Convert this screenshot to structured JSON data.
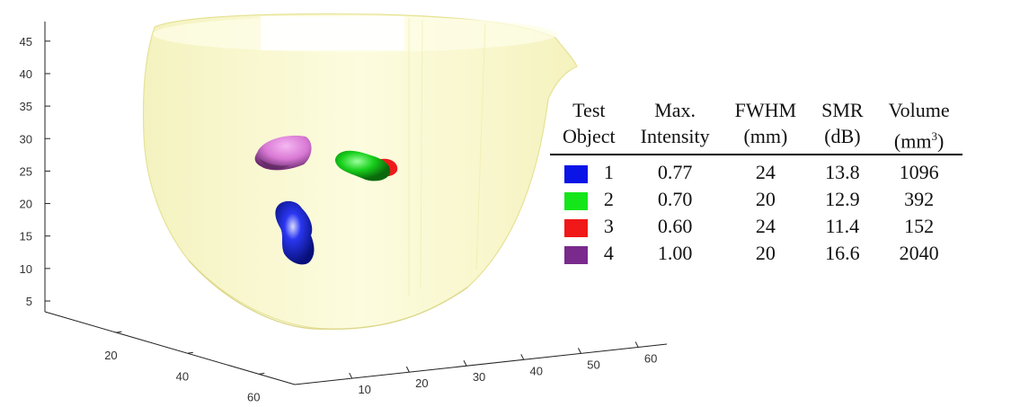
{
  "chart_data": {
    "type": "table",
    "plot_3d": {
      "z_ticks": [
        "5",
        "10",
        "15",
        "20",
        "25",
        "30",
        "35",
        "40",
        "45"
      ],
      "x_ticks": [
        "10",
        "20",
        "30",
        "40",
        "50",
        "60"
      ],
      "y_ticks": [
        "20",
        "40",
        "60"
      ],
      "grid": false
    },
    "table": {
      "header": [
        [
          "Test",
          "Max.",
          "FWHM",
          "SMR",
          "Volume"
        ],
        [
          "Object",
          "Intensity",
          "(mm)",
          "(dB)",
          "(mm"
        ]
      ],
      "volume_unit_power": "3",
      "volume_unit_close": ")",
      "rows": [
        {
          "object": "1",
          "color": "#0a14e6",
          "max_intensity": "0.77",
          "fwhm": "24",
          "smr": "13.8",
          "volume": "1096"
        },
        {
          "object": "2",
          "color": "#14e61a",
          "max_intensity": "0.70",
          "fwhm": "20",
          "smr": "12.9",
          "volume": "392"
        },
        {
          "object": "3",
          "color": "#f01818",
          "max_intensity": "0.60",
          "fwhm": "24",
          "smr": "11.4",
          "volume": "152"
        },
        {
          "object": "4",
          "color": "#7a2a8c",
          "max_intensity": "1.00",
          "fwhm": "20",
          "smr": "16.6",
          "volume": "2040"
        }
      ]
    }
  }
}
